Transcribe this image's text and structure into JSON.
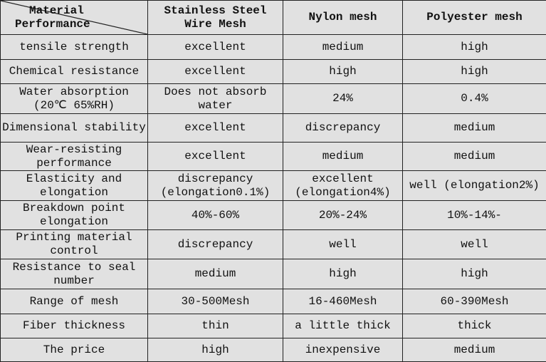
{
  "header": {
    "corner_top": "Material",
    "corner_bottom": "Performance",
    "columns": [
      "Stainless Steel Wire Mesh",
      "Nylon mesh",
      "Polyester mesh"
    ]
  },
  "rows": [
    {
      "label": "tensile strength",
      "values": [
        "excellent",
        "medium",
        "high"
      ]
    },
    {
      "label": "Chemical resistance",
      "values": [
        "excellent",
        "high",
        "high"
      ]
    },
    {
      "label": "Water absorption (20℃ 65%RH)",
      "values": [
        "Does not absorb water",
        "24%",
        "0.4%"
      ]
    },
    {
      "label": "Dimensional stability",
      "values": [
        "excellent",
        "discrepancy",
        "medium"
      ]
    },
    {
      "label": "Wear-resisting performance",
      "values": [
        "excellent",
        "medium",
        "medium"
      ]
    },
    {
      "label": "Elasticity and elongation",
      "values": [
        "discrepancy (elongation0.1%)",
        "excellent (elongation4%)",
        "well (elongation2%)"
      ]
    },
    {
      "label": "Breakdown point elongation",
      "values": [
        "40%-60%",
        "20%-24%",
        "10%-14%-"
      ]
    },
    {
      "label": "Printing material control",
      "values": [
        "discrepancy",
        "well",
        "well"
      ]
    },
    {
      "label": "Resistance to seal number",
      "values": [
        "medium",
        "high",
        "high"
      ]
    },
    {
      "label": "Range of mesh",
      "values": [
        "30-500Mesh",
        "16-460Mesh",
        "60-390Mesh"
      ]
    },
    {
      "label": "Fiber thickness",
      "values": [
        "thin",
        "a little thick",
        "thick"
      ]
    },
    {
      "label": "The price",
      "values": [
        "high",
        "inexpensive",
        "medium"
      ]
    }
  ]
}
